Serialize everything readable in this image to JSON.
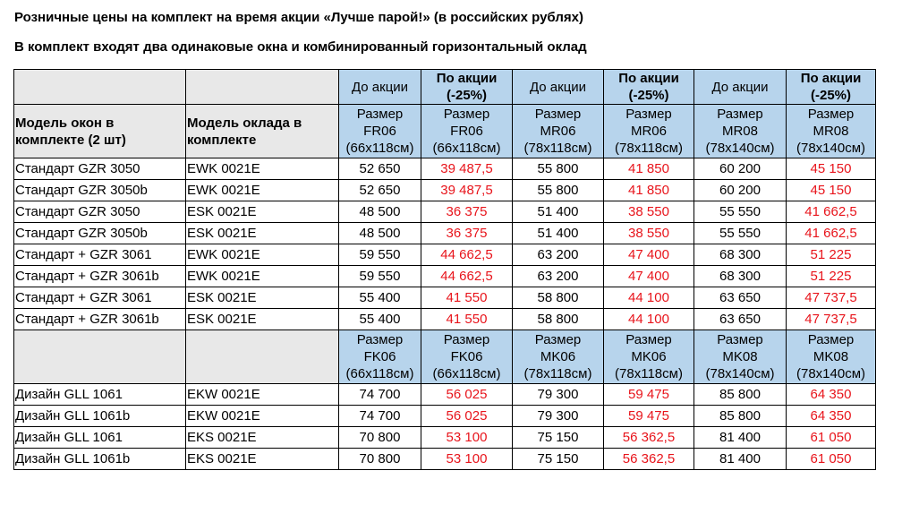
{
  "title": "Розничные  цены на комплект на время акции «Лучше парой!» (в российских рублях)",
  "subtitle": "В комплект входят два одинаковые окна и комбинированный горизонтальный оклад",
  "header": {
    "before": "До акции",
    "after_line1": "По акции",
    "after_line2": "(-25%)",
    "col1": "Модель окон в комплекте (2 шт)",
    "col2": "Модель оклада в комплекте"
  },
  "sizes_a": [
    {
      "label": "Размер",
      "code": "FR06",
      "dims": "(66x118см)"
    },
    {
      "label": "Размер",
      "code": "FR06",
      "dims": "(66x118см)"
    },
    {
      "label": "Размер",
      "code": "MR06",
      "dims": "(78x118см)"
    },
    {
      "label": "Размер",
      "code": "MR06",
      "dims": "(78x118см)"
    },
    {
      "label": "Размер",
      "code": "MR08",
      "dims": "(78x140см)"
    },
    {
      "label": "Размер",
      "code": "MR08",
      "dims": "(78x140см)"
    }
  ],
  "sizes_b": [
    {
      "label": "Размер",
      "code": "FK06",
      "dims": "(66x118см)"
    },
    {
      "label": "Размер",
      "code": "FK06",
      "dims": "(66x118см)"
    },
    {
      "label": "Размер",
      "code": "MK06",
      "dims": "(78x118см)"
    },
    {
      "label": "Размер",
      "code": "MK06",
      "dims": "(78x118см)"
    },
    {
      "label": "Размер",
      "code": "MK08",
      "dims": "(78x140см)"
    },
    {
      "label": "Размер",
      "code": "MK08",
      "dims": "(78x140см)"
    }
  ],
  "rows_a": [
    [
      "Стандарт GZR 3050",
      "EWK 0021E",
      "52 650",
      "39 487,5",
      "55 800",
      "41 850",
      "60 200",
      "45 150"
    ],
    [
      "Стандарт  GZR 3050b",
      "EWK 0021E",
      "52 650",
      "39 487,5",
      "55 800",
      "41 850",
      "60 200",
      "45 150"
    ],
    [
      "Стандарт GZR 3050",
      "ESK 0021E",
      "48 500",
      "36 375",
      "51 400",
      "38 550",
      "55 550",
      "41 662,5"
    ],
    [
      "Стандарт GZR 3050b",
      "ESK 0021E",
      "48 500",
      "36 375",
      "51 400",
      "38 550",
      "55 550",
      "41 662,5"
    ],
    [
      "Стандарт + GZR 3061",
      "EWK 0021E",
      "59 550",
      "44 662,5",
      "63 200",
      "47 400",
      "68 300",
      "51 225"
    ],
    [
      "Стандарт + GZR 3061b",
      "EWK 0021E",
      "59 550",
      "44 662,5",
      "63 200",
      "47 400",
      "68 300",
      "51 225"
    ],
    [
      "Стандарт + GZR 3061",
      "ESK 0021E",
      "55 400",
      "41 550",
      "58 800",
      "44 100",
      "63 650",
      "47 737,5"
    ],
    [
      "Стандарт + GZR 3061b",
      "ESK 0021E",
      "55 400",
      "41 550",
      "58 800",
      "44 100",
      "63 650",
      "47 737,5"
    ]
  ],
  "rows_b": [
    [
      "Дизайн GLL 1061",
      "EKW 0021E",
      "74 700",
      "56 025",
      "79 300",
      "59 475",
      "85 800",
      "64 350"
    ],
    [
      "Дизайн GLL 1061b",
      "EKW 0021E",
      "74 700",
      "56 025",
      "79 300",
      "59 475",
      "85 800",
      "64 350"
    ],
    [
      "Дизайн GLL 1061",
      "EKS 0021E",
      "70 800",
      "53 100",
      "75 150",
      "56 362,5",
      "81 400",
      "61 050"
    ],
    [
      "Дизайн GLL 1061b",
      "EKS 0021E",
      "70 800",
      "53 100",
      "75 150",
      "56 362,5",
      "81 400",
      "61 050"
    ]
  ],
  "colors": {
    "header_fill": "#b7d4ec",
    "label_fill": "#e8e8e8",
    "discount_text": "#e8141b"
  }
}
